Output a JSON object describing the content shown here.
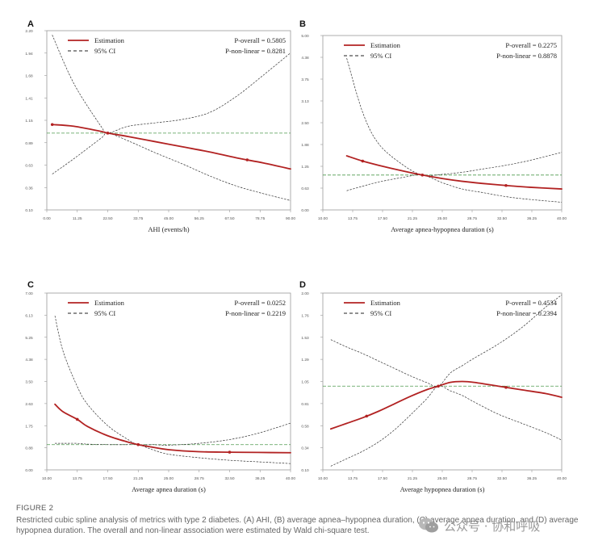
{
  "colors": {
    "estimation": "#b22222",
    "ci": "#333333",
    "reference": "#4f9a4f"
  },
  "legend": {
    "estimation": "Estimation",
    "ci": "95% CI"
  },
  "chart_data": [
    {
      "panel": "A",
      "type": "line",
      "xlabel": "AHI (events/h)",
      "ylabel": "",
      "p_overall": "P-overall = 0.5805",
      "p_nonlinear": "P-non-linear = 0.8281",
      "xlim": [
        0,
        90
      ],
      "ylim": [
        0.1,
        2.2
      ],
      "xticks": [
        "0.00",
        "11.25",
        "22.50",
        "33.75",
        "45.00",
        "56.25",
        "67.50",
        "78.75",
        "90.00"
      ],
      "yticks": [
        "0.10",
        "0.36",
        "0.63",
        "0.89",
        "1.15",
        "1.41",
        "1.68",
        "1.94",
        "2.20"
      ],
      "reference": 1.0,
      "x": [
        2,
        10,
        20,
        22.5,
        30,
        40,
        50,
        60,
        70,
        80,
        90
      ],
      "estimate": [
        1.1,
        1.08,
        1.02,
        1.0,
        0.96,
        0.9,
        0.84,
        0.78,
        0.71,
        0.65,
        0.58
      ],
      "ci_lower": [
        0.52,
        0.7,
        0.94,
        1.0,
        0.91,
        0.77,
        0.64,
        0.5,
        0.38,
        0.29,
        0.21
      ],
      "ci_upper": [
        2.15,
        1.58,
        1.08,
        1.0,
        1.08,
        1.12,
        1.16,
        1.24,
        1.43,
        1.68,
        1.94
      ],
      "knots": [
        2,
        22.5,
        74
      ]
    },
    {
      "panel": "B",
      "type": "line",
      "xlabel": "Average apnea-hypopnea duration (s)",
      "ylabel": "",
      "p_overall": "P-overall = 0.2275",
      "p_nonlinear": "P-non-linear = 0.8878",
      "xlim": [
        10,
        40
      ],
      "ylim": [
        0.0,
        5.0
      ],
      "xticks": [
        "10.00",
        "13.75",
        "17.50",
        "21.25",
        "25.00",
        "28.75",
        "32.50",
        "36.25",
        "40.00"
      ],
      "yticks": [
        "0.00",
        "0.63",
        "1.25",
        "1.88",
        "2.50",
        "3.13",
        "3.75",
        "4.38",
        "5.00"
      ],
      "reference": 1.0,
      "x": [
        13,
        15,
        17,
        20,
        22.5,
        25,
        27.5,
        30,
        33,
        36,
        40
      ],
      "estimate": [
        1.55,
        1.4,
        1.28,
        1.12,
        1.0,
        0.9,
        0.82,
        0.76,
        0.7,
        0.65,
        0.6
      ],
      "ci_lower": [
        0.55,
        0.68,
        0.8,
        0.93,
        1.0,
        0.78,
        0.6,
        0.5,
        0.38,
        0.3,
        0.22
      ],
      "ci_upper": [
        4.35,
        2.8,
        1.9,
        1.3,
        1.0,
        1.02,
        1.08,
        1.17,
        1.28,
        1.42,
        1.65
      ],
      "knots": [
        15,
        22.5,
        33
      ]
    },
    {
      "panel": "C",
      "type": "line",
      "xlabel": "Average apnea duration (s)",
      "ylabel": "",
      "p_overall": "P-overall = 0.0252",
      "p_nonlinear": "P-non-linear = 0.2219",
      "xlim": [
        10,
        40
      ],
      "ylim": [
        0.0,
        7.0
      ],
      "xticks": [
        "10.00",
        "13.75",
        "17.50",
        "21.25",
        "25.00",
        "28.75",
        "32.50",
        "36.25",
        "40.00"
      ],
      "yticks": [
        "0.00",
        "0.88",
        "1.75",
        "2.63",
        "3.50",
        "4.38",
        "5.25",
        "6.13",
        "7.00"
      ],
      "reference": 1.0,
      "x": [
        11,
        12,
        13.75,
        15,
        17.5,
        20,
        21.25,
        23,
        25,
        28.75,
        32.5,
        36,
        40
      ],
      "estimate": [
        2.6,
        2.3,
        2.0,
        1.72,
        1.35,
        1.1,
        1.0,
        0.9,
        0.8,
        0.72,
        0.7,
        0.69,
        0.68
      ],
      "ci_lower": [
        1.05,
        1.05,
        1.05,
        1.02,
        1.0,
        1.0,
        1.0,
        0.8,
        0.62,
        0.48,
        0.38,
        0.32,
        0.25
      ],
      "ci_upper": [
        6.1,
        4.7,
        3.3,
        2.6,
        1.75,
        1.2,
        1.0,
        1.0,
        0.98,
        1.05,
        1.2,
        1.45,
        1.85
      ],
      "knots": [
        13.75,
        21.25,
        32.5
      ]
    },
    {
      "panel": "D",
      "type": "line",
      "xlabel": "Average hypopnea duration (s)",
      "ylabel": "",
      "p_overall": "P-overall = 0.4534",
      "p_nonlinear": "P-non-linear = 0.2394",
      "xlim": [
        10,
        40
      ],
      "ylim": [
        0.1,
        2.0
      ],
      "xticks": [
        "10.00",
        "13.75",
        "17.50",
        "21.25",
        "25.00",
        "28.75",
        "32.50",
        "36.25",
        "40.00"
      ],
      "yticks": [
        "0.10",
        "0.34",
        "0.58",
        "0.81",
        "1.05",
        "1.29",
        "1.53",
        "1.76",
        "2.00"
      ],
      "reference": 1.0,
      "x": [
        11,
        13,
        15,
        17,
        19,
        21,
        23,
        24.5,
        26,
        27.5,
        29,
        32,
        35,
        38,
        40
      ],
      "estimate": [
        0.54,
        0.6,
        0.66,
        0.73,
        0.81,
        0.89,
        0.96,
        1.0,
        1.04,
        1.05,
        1.04,
        1.0,
        0.96,
        0.92,
        0.88
      ],
      "ci_lower": [
        0.14,
        0.22,
        0.3,
        0.4,
        0.53,
        0.69,
        0.86,
        1.0,
        0.95,
        0.9,
        0.83,
        0.7,
        0.6,
        0.5,
        0.42
      ],
      "ci_upper": [
        1.5,
        1.42,
        1.35,
        1.27,
        1.19,
        1.11,
        1.04,
        1.0,
        1.14,
        1.22,
        1.3,
        1.45,
        1.63,
        1.85,
        1.98
      ],
      "knots": [
        15.5,
        24.5,
        33
      ]
    }
  ],
  "caption": {
    "label": "FIGURE 2",
    "text": "Restricted cubic spline analysis of metrics with type 2 diabetes. (A) AHI, (B) average apnea–hypopnea duration, (C) average apnea duration, and (D) average hypopnea duration. The overall and non-linear association were estimated by Wald chi-square test."
  },
  "watermark": {
    "text": "公众号 · 协和呼吸",
    "icon": "wechat-icon"
  }
}
